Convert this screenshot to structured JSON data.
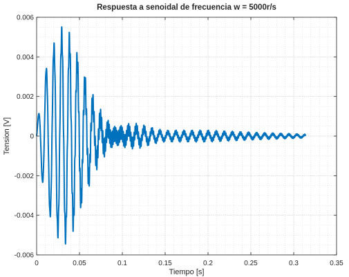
{
  "chart_data": {
    "type": "line",
    "title": "Respuesta a senoidal de frecuencia w = 5000r/s",
    "xlabel": "Tiempo [s]",
    "ylabel": "Tension [V]",
    "xlim": [
      0,
      0.35
    ],
    "ylim": [
      -0.006,
      0.006
    ],
    "xticks": [
      0,
      0.05,
      0.1,
      0.15,
      0.2,
      0.25,
      0.3,
      0.35
    ],
    "xtick_labels": [
      "0",
      "0.05",
      "0.1",
      "0.15",
      "0.2",
      "0.25",
      "0.3",
      "0.35"
    ],
    "yticks": [
      -0.006,
      -0.004,
      -0.002,
      0,
      0.002,
      0.004,
      0.006
    ],
    "ytick_labels": [
      "-0.006",
      "-0.004",
      "-0.002",
      "0",
      "0.002",
      "0.004",
      "0.006"
    ],
    "grid": true,
    "minor_grid": true,
    "line_color": "#0072bd",
    "series": [
      {
        "x_range": [
          0,
          0.314
        ],
        "envelope": {
          "t": [
            0,
            0.005,
            0.01,
            0.02,
            0.03,
            0.04,
            0.05,
            0.06,
            0.07,
            0.08,
            0.09,
            0.1,
            0.11,
            0.12,
            0.13,
            0.14,
            0.15,
            0.2,
            0.25,
            0.314
          ],
          "amplitude": [
            0.0005,
            0.0018,
            0.0033,
            0.0048,
            0.0059,
            0.0059,
            0.0051,
            0.0041,
            0.0032,
            0.0025,
            0.0019,
            0.0015,
            0.0012,
            0.0009,
            0.0006,
            0.0004,
            0.0003,
            0.0003,
            0.0002,
            0.0001
          ]
        },
        "dominant_period_s": 0.00895,
        "steady_period_s": 0.00126
      }
    ]
  }
}
